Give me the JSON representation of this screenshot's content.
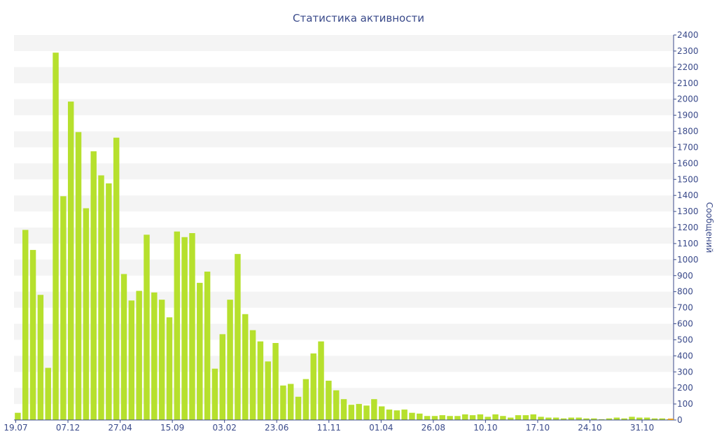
{
  "chart_data": {
    "type": "bar",
    "title": "Статистика активности",
    "ylabel": "Сообщений",
    "ylim": [
      0,
      2400
    ],
    "yticks": [
      0,
      100,
      200,
      300,
      400,
      500,
      600,
      700,
      800,
      900,
      1000,
      1100,
      1200,
      1300,
      1400,
      1500,
      1600,
      1700,
      1800,
      1900,
      2000,
      2100,
      2200,
      2300,
      2400
    ],
    "x_tick_labels": [
      "19.07",
      "07.12",
      "27.04",
      "15.09",
      "03.02",
      "23.06",
      "11.11",
      "01.04",
      "26.08",
      "10.10",
      "17.10",
      "24.10",
      "31.10"
    ],
    "bar_color": "#b6e02d",
    "band_color": "#f4f4f4",
    "axis_color": "#3a4a8a",
    "values": [
      45,
      1185,
      1060,
      780,
      325,
      2290,
      1395,
      1985,
      1795,
      1320,
      1675,
      1525,
      1475,
      1760,
      910,
      745,
      805,
      1155,
      795,
      750,
      640,
      1175,
      1140,
      1165,
      855,
      925,
      320,
      535,
      750,
      1035,
      660,
      560,
      490,
      365,
      480,
      215,
      225,
      145,
      255,
      415,
      490,
      245,
      185,
      130,
      95,
      100,
      90,
      130,
      85,
      65,
      60,
      65,
      45,
      40,
      25,
      25,
      30,
      25,
      25,
      35,
      30,
      35,
      20,
      35,
      25,
      15,
      30,
      30,
      35,
      20,
      15,
      15,
      10,
      15,
      15,
      10,
      10,
      5,
      10,
      15,
      10,
      20,
      15,
      15,
      10,
      10,
      5
    ]
  }
}
